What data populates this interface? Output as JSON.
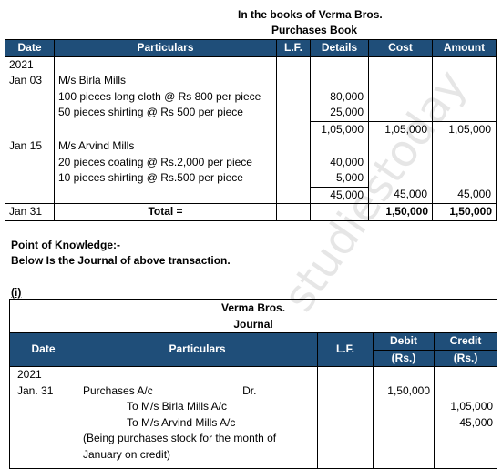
{
  "purchases": {
    "heading1": "In the books of Verma Bros.",
    "heading2": "Purchases Book",
    "columns": [
      "Date",
      "Particulars",
      "L.F.",
      "Details",
      "Cost",
      "Amount"
    ],
    "entry1": {
      "year": "2021",
      "date": "Jan 03",
      "supplier": "M/s Birla Mills",
      "item1": "100 pieces long cloth @ Rs 800 per piece",
      "item1_value": "80,000",
      "item2": "50 pieces shirting @ Rs 500 per piece",
      "item2_value": "25,000",
      "subtotal": "1,05,000",
      "cost": "1,05,000",
      "amount": "1,05,000"
    },
    "entry2": {
      "date": "Jan 15",
      "supplier": "M/s Arvind Mills",
      "item1": "20 pieces coating @ Rs.2,000 per piece",
      "item1_value": "40,000",
      "item2": "10 pieces shirting @ Rs.500 per piece",
      "item2_value": "5,000",
      "subtotal": "45,000",
      "cost": "45,000",
      "amount": "45,000"
    },
    "total": {
      "date": "Jan 31",
      "label": "Total =",
      "cost": "1,50,000",
      "amount": "1,50,000"
    }
  },
  "knowledge": {
    "heading": "Point of Knowledge:-",
    "text": "Below Is the Journal of above transaction."
  },
  "journal": {
    "marker": "(i)",
    "company": "Verma Bros.",
    "title": "Journal",
    "columns": {
      "date": "Date",
      "particulars": "Particulars",
      "lf": "L.F.",
      "debit": "Debit",
      "debit_unit": "(Rs.)",
      "credit": "Credit",
      "credit_unit": "(Rs.)"
    },
    "entry": {
      "year": "2021",
      "date": "Jan. 31",
      "debit_account": "Purchases A/c",
      "dr": "Dr.",
      "credit_account1": "To M/s Birla Mills A/c",
      "credit_account2": "To M/s Arvind Mills A/c",
      "narration1": "(Being purchases stock for the month of",
      "narration2": "January on credit)",
      "debit": "1,50,000",
      "credit1": "1,05,000",
      "credit2": "45,000"
    }
  },
  "watermark": "studiestoday"
}
